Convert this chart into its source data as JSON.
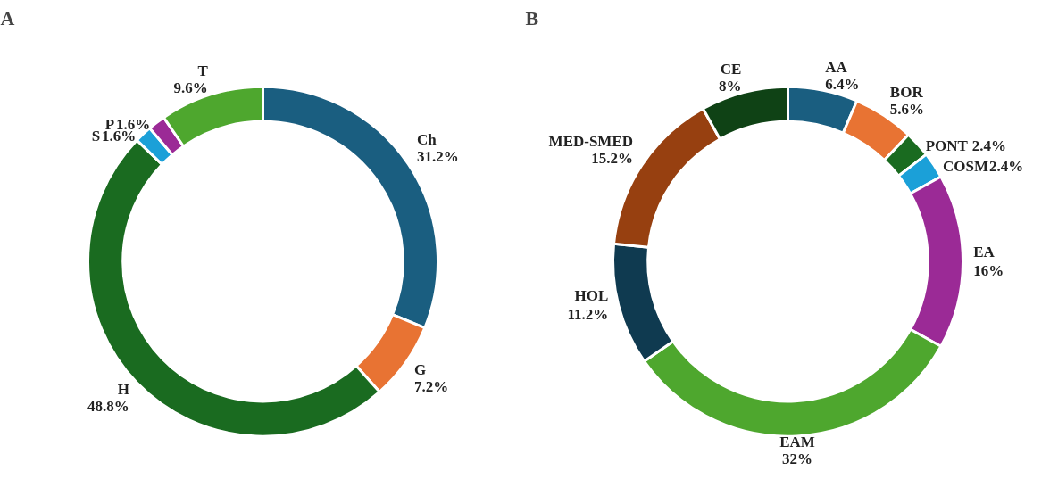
{
  "chart_data": [
    {
      "type": "donut",
      "title": "A",
      "categories": [
        "Ch",
        "G",
        "H",
        "S",
        "P",
        "T"
      ],
      "values": [
        31.2,
        7.2,
        48.8,
        1.6,
        1.6,
        9.6
      ],
      "value_labels": [
        "31.2%",
        "7.2%",
        "48.8%",
        "1.6%",
        "1.6%",
        "9.6%"
      ],
      "colors": [
        "#1a5e80",
        "#e87333",
        "#1a6b20",
        "#1ba0d8",
        "#9b2a96",
        "#4ea72e"
      ]
    },
    {
      "type": "donut",
      "title": "B",
      "categories": [
        "AA",
        "BOR",
        "PONT",
        "COSM",
        "EA",
        "EAM",
        "HOL",
        "MED-SMED",
        "CE"
      ],
      "values": [
        6.4,
        5.6,
        2.4,
        2.4,
        16,
        32,
        11.2,
        15.2,
        8
      ],
      "value_labels": [
        "6.4%",
        "5.6%",
        "2.4%",
        "2.4%",
        "16%",
        "32%",
        "11.2%",
        "15.2%",
        "8%"
      ],
      "colors": [
        "#1a5e80",
        "#e87333",
        "#1a6b20",
        "#1ba0d8",
        "#9b2a96",
        "#4ea72e",
        "#0f3a50",
        "#974010",
        "#0f4215"
      ]
    }
  ]
}
